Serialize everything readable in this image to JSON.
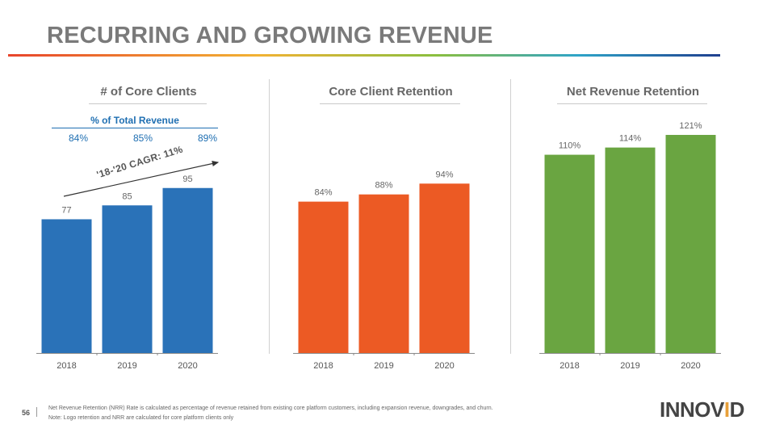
{
  "title": "RECURRING AND GROWING REVENUE",
  "panels": [
    {
      "title": "# of Core Clients"
    },
    {
      "title": "Core Client Retention"
    },
    {
      "title": "Net Revenue Retention"
    }
  ],
  "revenue_share": {
    "label": "% of Total Revenue",
    "values": [
      "84%",
      "85%",
      "89%"
    ]
  },
  "cagr_label": "'18-'20 CAGR: 11%",
  "chart_data": [
    {
      "type": "bar",
      "title": "# of Core Clients",
      "categories": [
        "2018",
        "2019",
        "2020"
      ],
      "values": [
        77,
        85,
        95
      ],
      "labels": [
        "77",
        "85",
        "95"
      ],
      "color": "#2a72b8",
      "ylim": [
        0,
        120
      ]
    },
    {
      "type": "bar",
      "title": "Core Client Retention",
      "categories": [
        "2018",
        "2019",
        "2020"
      ],
      "values": [
        84,
        88,
        94
      ],
      "labels": [
        "84%",
        "88%",
        "94%"
      ],
      "color": "#ec5a24",
      "ylim": [
        0,
        130
      ]
    },
    {
      "type": "bar",
      "title": "Net Revenue Retention",
      "categories": [
        "2018",
        "2019",
        "2020"
      ],
      "values": [
        110,
        114,
        121
      ],
      "labels": [
        "110%",
        "114%",
        "121%"
      ],
      "color": "#6aa541",
      "ylim": [
        0,
        160
      ]
    }
  ],
  "footnotes": [
    "Net Revenue Retention (NRR) Rate is calculated as percentage of  revenue retained from existing core platform customers, including expansion revenue, downgrades, and churn.",
    "Note: Logo retention and NRR are calculated for core platform clients only"
  ],
  "page_number": "56",
  "logo": {
    "text_main": "INNOV",
    "text_accent": "I",
    "text_end": "D"
  }
}
